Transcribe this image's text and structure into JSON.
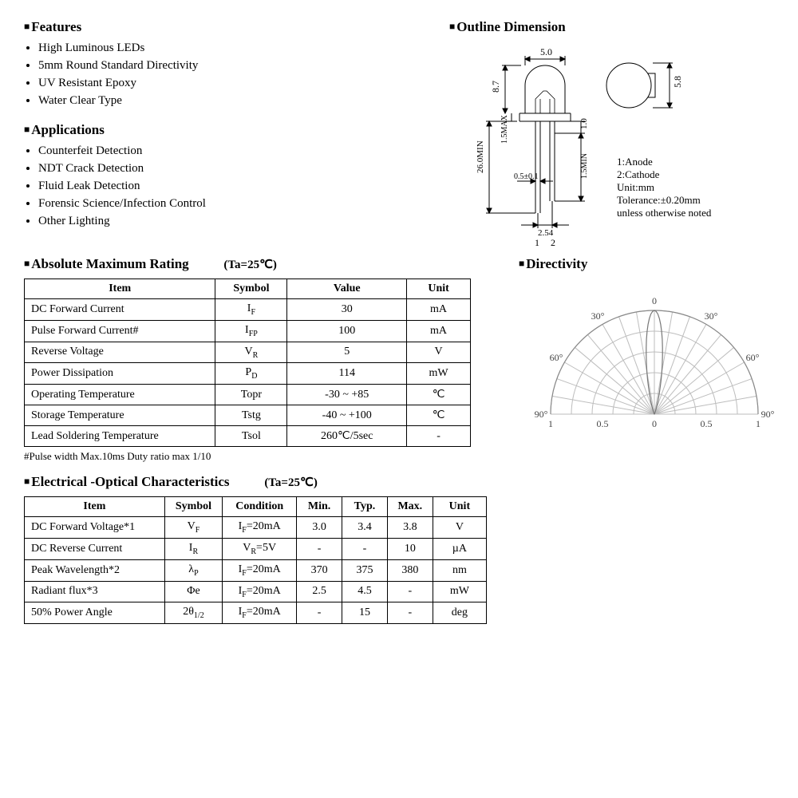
{
  "features": {
    "heading": "Features",
    "items": [
      "High Luminous LEDs",
      "5mm Round Standard Directivity",
      "UV Resistant Epoxy",
      "Water Clear Type"
    ]
  },
  "applications": {
    "heading": "Applications",
    "items": [
      "Counterfeit Detection",
      "NDT Crack Detection",
      "Fluid Leak Detection",
      "Forensic Science/Infection Control",
      "Other Lighting"
    ]
  },
  "outline": {
    "heading": "Outline Dimension",
    "dims": {
      "width_top": "5.0",
      "height_top": "5.8",
      "body_h": "8.7",
      "lead_len": "26.0MIN",
      "flange_h": "1.5MAX",
      "flange_to_lead": "1.0",
      "lead_w": "0.5±0.1",
      "lead_gap_min": "1.5MIN",
      "pitch": "2.54",
      "pin1": "1",
      "pin2": "2"
    },
    "notes": [
      "1:Anode",
      "2:Cathode",
      "Unit:mm",
      "Tolerance:±0.20mm",
      "unless otherwise noted"
    ]
  },
  "amr": {
    "heading": "Absolute Maximum Rating",
    "ta": "(Ta=25℃)",
    "columns": [
      "Item",
      "Symbol",
      "Value",
      "Unit"
    ],
    "rows": [
      [
        "DC Forward Current",
        "I<sub>F</sub>",
        "30",
        "mA"
      ],
      [
        "Pulse Forward Current#",
        "I<sub>FP</sub>",
        "100",
        "mA"
      ],
      [
        "Reverse Voltage",
        "V<sub>R</sub>",
        "5",
        "V"
      ],
      [
        "Power Dissipation",
        "P<sub>D</sub>",
        "114",
        "mW"
      ],
      [
        "Operating Temperature",
        "Topr",
        "-30 ~ +85",
        "℃"
      ],
      [
        "Storage Temperature",
        "Tstg",
        "-40 ~ +100",
        "℃"
      ],
      [
        "Lead Soldering Temperature",
        "Tsol",
        "260℃/5sec",
        "-"
      ]
    ],
    "footnote": "#Pulse width Max.10ms Duty ratio max 1/10"
  },
  "eoc": {
    "heading": "Electrical -Optical Characteristics",
    "ta": "(Ta=25℃)",
    "columns": [
      "Item",
      "Symbol",
      "Condition",
      "Min.",
      "Typ.",
      "Max.",
      "Unit"
    ],
    "rows": [
      [
        "DC Forward Voltage*1",
        "V<sub>F</sub>",
        "I<sub>F</sub>=20mA",
        "3.0",
        "3.4",
        "3.8",
        "V"
      ],
      [
        "DC Reverse Current",
        "I<sub>R</sub>",
        "V<sub>R</sub>=5V",
        "-",
        "-",
        "10",
        "µA"
      ],
      [
        "Peak Wavelength*2",
        "λ<sub>P</sub>",
        "I<sub>F</sub>=20mA",
        "370",
        "375",
        "380",
        "nm"
      ],
      [
        "Radiant flux*3",
        "Φe",
        "I<sub>F</sub>=20mA",
        "2.5",
        "4.5",
        "-",
        "mW"
      ],
      [
        "50% Power Angle",
        "2θ<sub>1/2</sub>",
        "I<sub>F</sub>=20mA",
        "-",
        "15",
        "-",
        "deg"
      ]
    ]
  },
  "directivity": {
    "heading": "Directivity",
    "angle_labels": [
      "90°",
      "60°",
      "30°",
      "0",
      "30°",
      "60°",
      "90°"
    ],
    "radial_labels": [
      "1",
      "0.5",
      "0",
      "0.5",
      "1"
    ],
    "radii": [
      0.2,
      0.4,
      0.6,
      0.8,
      1.0
    ],
    "angle_lines_deg": [
      0,
      10,
      20,
      30,
      40,
      50,
      60,
      70,
      80,
      90,
      100,
      110,
      120,
      130,
      140,
      150,
      160,
      170,
      180
    ],
    "bead_pattern": {
      "type": "narrow-polar",
      "half_power_deg": 7.5,
      "stroke_color": "#777777"
    },
    "grid_color": "#bdbdbd",
    "text_color": "#444444"
  },
  "colors": {
    "text": "#000000",
    "border": "#000000",
    "grid": "#bdbdbd"
  }
}
